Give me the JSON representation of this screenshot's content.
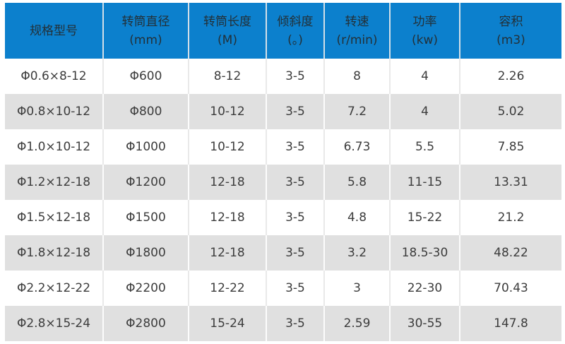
{
  "table": {
    "accent_color": "#0c80cd",
    "alt_row_color": "#e0e0e0",
    "header_text_color": "#233038",
    "body_text_color": "#3c3c3c",
    "columns": [
      {
        "key": "model",
        "title": "规格型号",
        "unit": ""
      },
      {
        "key": "diameter",
        "title": "转筒直径",
        "unit": "(mm)"
      },
      {
        "key": "length",
        "title": "转筒长度",
        "unit": "(M)"
      },
      {
        "key": "incline",
        "title": "倾斜度",
        "unit": "(。)"
      },
      {
        "key": "speed",
        "title": "转速",
        "unit": "(r/min)"
      },
      {
        "key": "power",
        "title": "功率",
        "unit": "(kw)"
      },
      {
        "key": "volume",
        "title": "容积",
        "unit": "(m3)"
      }
    ],
    "rows": [
      [
        "Φ0.6×8-12",
        "Φ600",
        "8-12",
        "3-5",
        "8",
        "4",
        "2.26"
      ],
      [
        "Φ0.8×10-12",
        "Φ800",
        "10-12",
        "3-5",
        "7.2",
        "4",
        "5.02"
      ],
      [
        "Φ1.0×10-12",
        "Φ1000",
        "10-12",
        "3-5",
        "6.73",
        "5.5",
        "7.85"
      ],
      [
        "Φ1.2×12-18",
        "Φ1200",
        "12-18",
        "3-5",
        "5.8",
        "11-15",
        "13.31"
      ],
      [
        "Φ1.5×12-18",
        "Φ1500",
        "12-18",
        "3-5",
        "4.8",
        "15-22",
        "21.2"
      ],
      [
        "Φ1.8×12-18",
        "Φ1800",
        "12-18",
        "3-5",
        "3.2",
        "18.5-30",
        "48.22"
      ],
      [
        "Φ2.2×12-22",
        "Φ2200",
        "12-22",
        "3-5",
        "3",
        "22-30",
        "70.43"
      ],
      [
        "Φ2.8×15-24",
        "Φ2800",
        "15-24",
        "3-5",
        "2.59",
        "30-55",
        "147.8"
      ]
    ]
  }
}
